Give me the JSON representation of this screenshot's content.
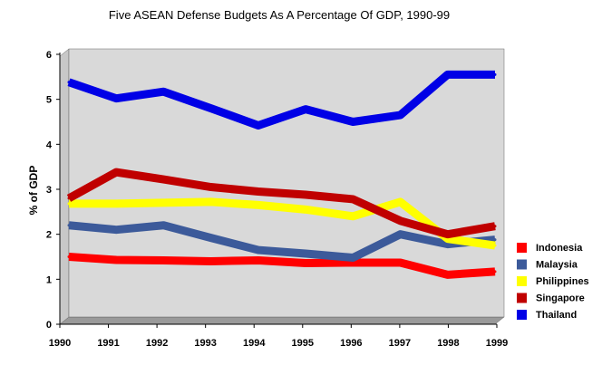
{
  "chart_data": {
    "type": "line",
    "title": "Five ASEAN Defense Budgets As A Percentage Of GDP, 1990-99",
    "xlabel": "",
    "ylabel": "% of GDP",
    "categories": [
      "1990",
      "1991",
      "1992",
      "1993",
      "1994",
      "1995",
      "1996",
      "1997",
      "1998",
      "1999"
    ],
    "ylim": [
      0,
      6
    ],
    "yticks": [
      "0",
      "1",
      "2",
      "3",
      "4",
      "5",
      "6"
    ],
    "grid": false,
    "legend_position": "right",
    "series": [
      {
        "name": "Indonesia",
        "color": "#ff0000",
        "values": [
          1.5,
          1.43,
          1.42,
          1.4,
          1.42,
          1.36,
          1.37,
          1.37,
          1.1,
          1.17
        ]
      },
      {
        "name": "Malaysia",
        "color": "#3c5a9a",
        "values": [
          2.2,
          2.1,
          2.2,
          1.92,
          1.65,
          1.57,
          1.48,
          2.0,
          1.78,
          1.88
        ]
      },
      {
        "name": "Philippines",
        "color": "#ffff00",
        "values": [
          2.68,
          2.68,
          2.7,
          2.72,
          2.65,
          2.55,
          2.4,
          2.72,
          1.9,
          1.75
        ]
      },
      {
        "name": "Singapore",
        "color": "#c00000",
        "values": [
          2.8,
          3.38,
          3.22,
          3.05,
          2.95,
          2.88,
          2.78,
          2.3,
          2.0,
          2.18
        ]
      },
      {
        "name": "Thailand",
        "color": "#0000e6",
        "values": [
          5.38,
          5.02,
          5.17,
          4.8,
          4.42,
          4.78,
          4.5,
          4.65,
          5.55,
          5.55
        ]
      }
    ]
  }
}
